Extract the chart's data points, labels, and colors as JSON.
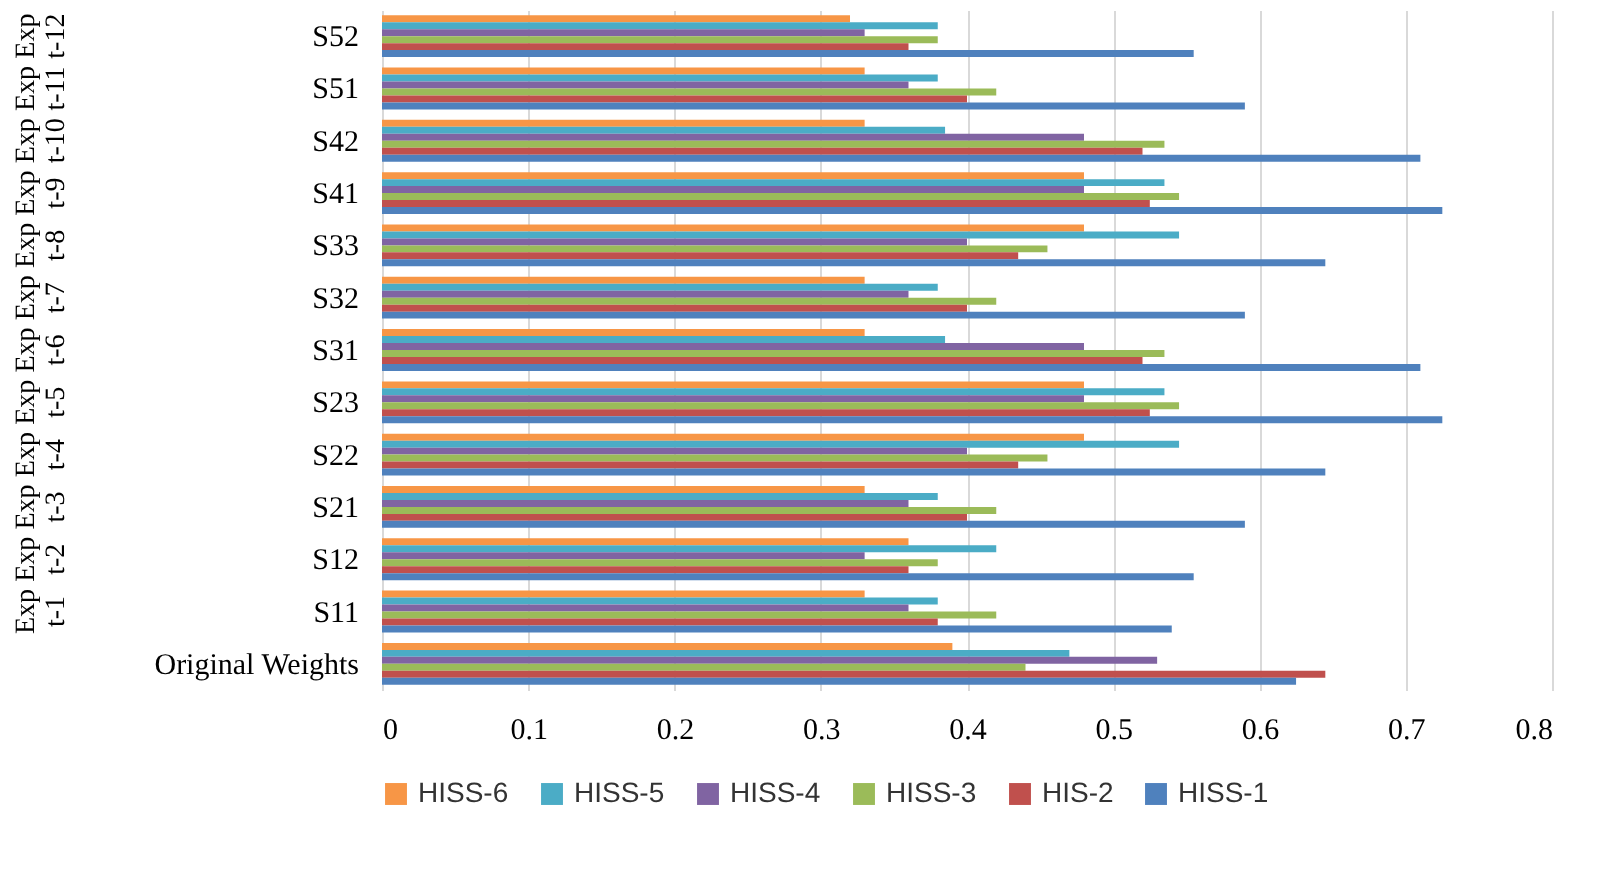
{
  "chart_data": {
    "type": "bar",
    "orientation": "horizontal",
    "categories": [
      "S52",
      "S51",
      "S42",
      "S41",
      "S33",
      "S32",
      "S31",
      "S23",
      "S22",
      "S21",
      "S12",
      "S11",
      "Original Weights"
    ],
    "series": [
      {
        "name": "HISS-6",
        "color": "#f79646",
        "values": [
          0.32,
          0.33,
          0.33,
          0.48,
          0.48,
          0.33,
          0.33,
          0.48,
          0.48,
          0.33,
          0.36,
          0.33,
          0.39
        ]
      },
      {
        "name": "HISS-5",
        "color": "#4bacc6",
        "values": [
          0.38,
          0.38,
          0.385,
          0.535,
          0.545,
          0.38,
          0.385,
          0.535,
          0.545,
          0.38,
          0.42,
          0.38,
          0.47
        ]
      },
      {
        "name": "HISS-4",
        "color": "#8064a2",
        "values": [
          0.33,
          0.36,
          0.48,
          0.48,
          0.4,
          0.36,
          0.48,
          0.48,
          0.4,
          0.36,
          0.33,
          0.36,
          0.53
        ]
      },
      {
        "name": "HISS-3",
        "color": "#9bbb59",
        "values": [
          0.38,
          0.42,
          0.535,
          0.545,
          0.455,
          0.42,
          0.535,
          0.545,
          0.455,
          0.42,
          0.38,
          0.42,
          0.44
        ]
      },
      {
        "name": "HIS-2",
        "color": "#c0504d",
        "values": [
          0.36,
          0.4,
          0.52,
          0.525,
          0.435,
          0.4,
          0.52,
          0.525,
          0.435,
          0.4,
          0.36,
          0.38,
          0.645
        ]
      },
      {
        "name": "HISS-1",
        "color": "#4f81bd",
        "values": [
          0.555,
          0.59,
          0.71,
          0.725,
          0.645,
          0.59,
          0.71,
          0.725,
          0.645,
          0.59,
          0.555,
          0.54,
          0.625
        ]
      }
    ],
    "xlim": [
      0,
      0.8
    ],
    "xticks": [
      0,
      0.1,
      0.2,
      0.3,
      0.4,
      0.5,
      0.6,
      0.7,
      0.8
    ],
    "annotations": [
      "Exp t-12",
      "Exp t-11",
      "Exp t-10",
      "Exp t-9",
      "Exp t-8",
      "Exp t-7",
      "Exp t-6",
      "Exp t-5",
      "Exp t-4",
      "Exp t-3",
      "Exp t-2",
      "Exp t-1"
    ],
    "grid": "x",
    "legend": "bottom"
  }
}
